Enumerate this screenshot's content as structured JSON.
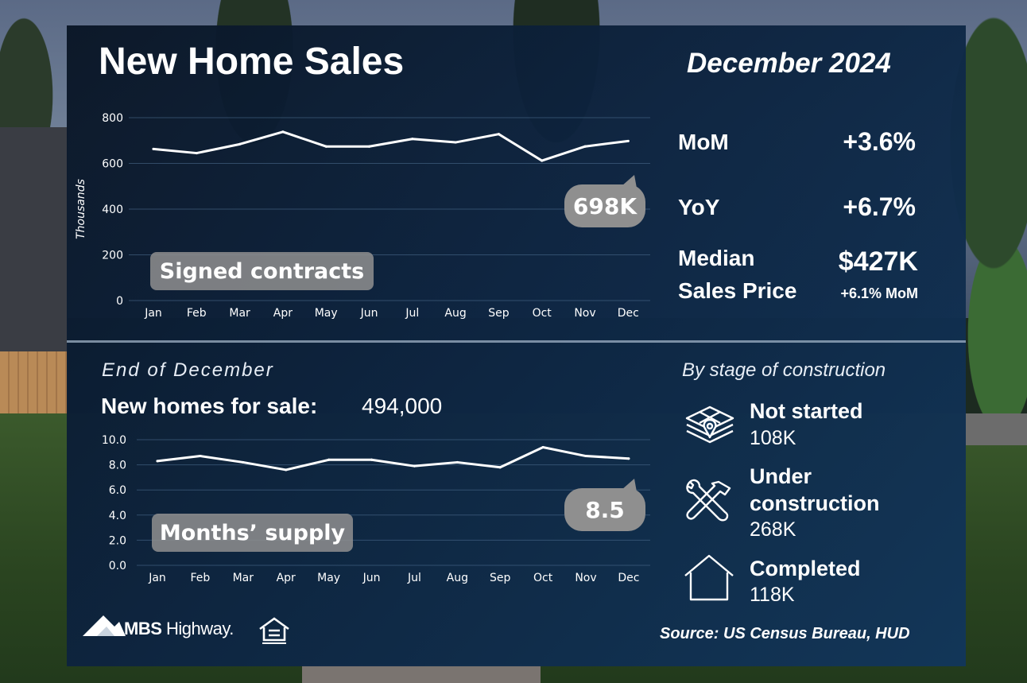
{
  "header": {
    "title": "New Home Sales",
    "date": "December 2024"
  },
  "stats": {
    "mom_label": "MoM",
    "mom_value": "+3.6%",
    "yoy_label": "YoY",
    "yoy_value": "+6.7%",
    "median_label_1": "Median",
    "median_label_2": "Sales Price",
    "median_value": "$427K",
    "median_change": "+6.1% MoM"
  },
  "inventory": {
    "period": "End of December",
    "label": "New homes for sale:",
    "value": "494,000"
  },
  "stages": {
    "title": "By stage of construction",
    "items": [
      {
        "label": "Not started",
        "value": "108K",
        "icon": "blueprint-pin-icon"
      },
      {
        "label": "Under construction",
        "value": "268K",
        "icon": "tools-icon"
      },
      {
        "label": "Completed",
        "value": "118K",
        "icon": "house-icon"
      }
    ]
  },
  "footer": {
    "brand_bold": "MBS",
    "brand_light": "Highway.",
    "source": "Source: US Census Bureau, HUD"
  },
  "colors": {
    "panel_dark": "#0a1626",
    "panel_light": "#12365a",
    "line": "#ffffff",
    "label_box": "#8a8a8a"
  },
  "chart_data": [
    {
      "type": "line",
      "series_label": "Signed contracts",
      "x": [
        "Jan",
        "Feb",
        "Mar",
        "Apr",
        "May",
        "Jun",
        "Jul",
        "Aug",
        "Sep",
        "Oct",
        "Nov",
        "Dec"
      ],
      "y": [
        663,
        645,
        684,
        738,
        674,
        674,
        707,
        692,
        728,
        612,
        674,
        698
      ],
      "ylabel": "Thousands",
      "ylim": [
        0,
        800
      ],
      "yticks": [
        "0",
        "200",
        "400",
        "600",
        "800"
      ],
      "callout": "698K",
      "grid": true
    },
    {
      "type": "line",
      "series_label": "Months’ supply",
      "x": [
        "Jan",
        "Feb",
        "Mar",
        "Apr",
        "May",
        "Jun",
        "Jul",
        "Aug",
        "Sep",
        "Oct",
        "Nov",
        "Dec"
      ],
      "y": [
        8.3,
        8.7,
        8.2,
        7.6,
        8.4,
        8.4,
        7.9,
        8.2,
        7.8,
        9.4,
        8.7,
        8.5
      ],
      "ylim": [
        0,
        10
      ],
      "yticks": [
        "0.0",
        "2.0",
        "4.0",
        "6.0",
        "8.0",
        "10.0"
      ],
      "callout": "8.5",
      "grid": true
    }
  ]
}
